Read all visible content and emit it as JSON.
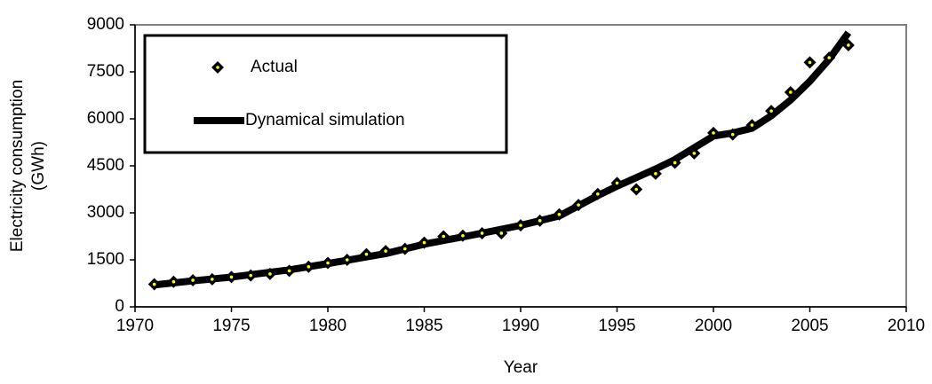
{
  "chart_data": {
    "type": "line-scatter",
    "xlabel": "Year",
    "ylabel": [
      "Electricity consumption",
      "(GWh)"
    ],
    "xlim": [
      1970,
      2010
    ],
    "xticks": [
      1970,
      1975,
      1980,
      1985,
      1990,
      1995,
      2000,
      2005,
      2010
    ],
    "ylim": [
      0,
      9000
    ],
    "yticks": [
      0,
      1500,
      3000,
      4500,
      6000,
      7500,
      9000
    ],
    "series": [
      {
        "name": "Actual",
        "kind": "marker",
        "color": "#000000",
        "marker_center": "#ffff00",
        "x": [
          1971,
          1972,
          1973,
          1974,
          1975,
          1976,
          1977,
          1978,
          1979,
          1980,
          1981,
          1982,
          1983,
          1984,
          1985,
          1986,
          1987,
          1988,
          1989,
          1990,
          1991,
          1992,
          1993,
          1994,
          1995,
          1996,
          1997,
          1998,
          1999,
          2000,
          2001,
          2002,
          2003,
          2004,
          2005,
          2006,
          2007
        ],
        "values": [
          720,
          800,
          850,
          880,
          950,
          1000,
          1050,
          1150,
          1280,
          1400,
          1500,
          1680,
          1780,
          1850,
          2050,
          2250,
          2270,
          2350,
          2350,
          2600,
          2750,
          2950,
          3250,
          3600,
          3950,
          3750,
          4250,
          4600,
          4900,
          5550,
          5500,
          5800,
          6250,
          6850,
          7800,
          7950,
          8350
        ]
      },
      {
        "name": "Dynamical simulation",
        "kind": "line",
        "color": "#000000",
        "x": [
          1971,
          1973,
          1975,
          1978,
          1980,
          1983,
          1985,
          1988,
          1990,
          1992,
          1994,
          1995,
          1997,
          1998,
          2000,
          2001,
          2002,
          2003,
          2004,
          2005,
          2006,
          2007
        ],
        "values": [
          700,
          830,
          950,
          1180,
          1380,
          1700,
          2000,
          2350,
          2600,
          2900,
          3550,
          3850,
          4400,
          4700,
          5450,
          5550,
          5700,
          6100,
          6600,
          7200,
          7900,
          8750
        ]
      }
    ]
  }
}
